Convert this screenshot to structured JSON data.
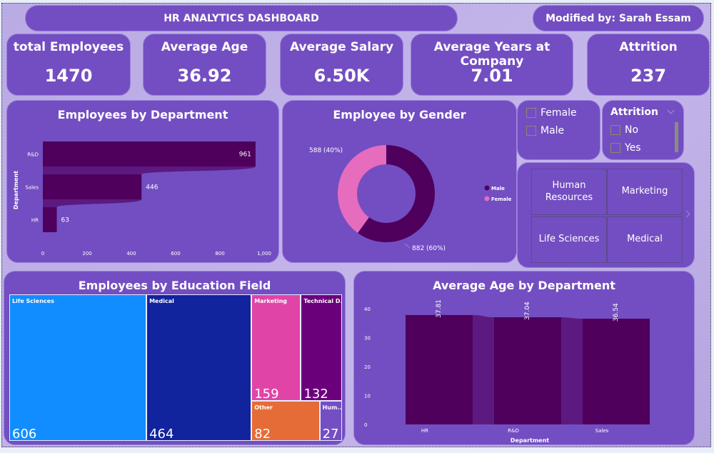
{
  "header": {
    "title": "HR ANALYTICS DASHBOARD",
    "modified_by": "Modified by: Sarah Essam"
  },
  "kpis": [
    {
      "label": "total Employees",
      "value": "1470"
    },
    {
      "label": "Average Age",
      "value": "36.92"
    },
    {
      "label": "Average Salary",
      "value": "6.50K"
    },
    {
      "label": "Average Years at Company",
      "value": "7.01"
    },
    {
      "label": "Attrition",
      "value": "237"
    }
  ],
  "slicers": {
    "gender": {
      "options": [
        "Female",
        "Male"
      ]
    },
    "attrition": {
      "title": "Attrition",
      "options": [
        "No",
        "Yes"
      ]
    },
    "education_tiles": [
      "Human Resources",
      "Marketing",
      "Life Sciences",
      "Medical"
    ]
  },
  "colors": {
    "card": "#734ec2",
    "bar_dark": "#4e005c",
    "ribbon": "#5c1a80",
    "male": "#4e005c",
    "female": "#e66cbd",
    "treemap": [
      "#118dff",
      "#12239e",
      "#e044a7",
      "#6b007b",
      "#e66c37",
      "#744ec2"
    ]
  },
  "chart_data": [
    {
      "type": "bar",
      "orientation": "horizontal",
      "title": "Employees by Department",
      "ylabel": "Department",
      "xlabel": "",
      "categories": [
        "R&D",
        "Sales",
        "HR"
      ],
      "values": [
        961,
        446,
        63
      ],
      "data_labels": [
        "961",
        "446",
        "63"
      ],
      "xlim": [
        0,
        1000
      ],
      "xticks": [
        "0",
        "200",
        "400",
        "600",
        "800",
        "1,000"
      ],
      "grid": false,
      "ribbon": true
    },
    {
      "type": "pie",
      "variant": "donut",
      "title": "Employee by Gender",
      "categories": [
        "Male",
        "Female"
      ],
      "values": [
        882,
        588
      ],
      "percent": [
        60,
        40
      ],
      "data_labels": [
        "882 (60%)",
        "588 (40%)"
      ],
      "legend": {
        "position": "right",
        "entries": [
          "Male",
          "Female"
        ]
      }
    },
    {
      "type": "treemap",
      "title": "Employees by Education Field",
      "categories": [
        "Life Sciences",
        "Medical",
        "Marketing",
        "Technical D...",
        "Other",
        "Hum..."
      ],
      "full_categories": [
        "Life Sciences",
        "Medical",
        "Marketing",
        "Technical Degree",
        "Other",
        "Human Resources"
      ],
      "values": [
        606,
        464,
        159,
        132,
        82,
        27
      ]
    },
    {
      "type": "bar",
      "orientation": "vertical",
      "title": "Average Age by Department",
      "xlabel": "Department",
      "ylabel": "",
      "categories": [
        "HR",
        "R&D",
        "Sales"
      ],
      "values": [
        37.81,
        37.04,
        36.54
      ],
      "data_labels": [
        "37.81",
        "37.04",
        "36.54"
      ],
      "ylim": [
        0,
        40
      ],
      "yticks": [
        "0",
        "10",
        "20",
        "30",
        "40"
      ],
      "grid": false,
      "ribbon": true
    }
  ]
}
